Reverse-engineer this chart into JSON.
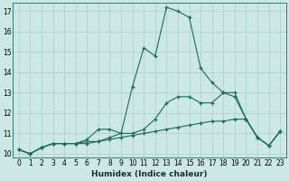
{
  "xlabel": "Humidex (Indice chaleur)",
  "background_color": "#cce8e5",
  "grid_color": "#aacfcc",
  "line_color": "#1a6b5a",
  "xlim_min": -0.5,
  "xlim_max": 23.5,
  "ylim_min": 9.8,
  "ylim_max": 17.4,
  "yticks": [
    10,
    11,
    12,
    13,
    14,
    15,
    16,
    17
  ],
  "xticks": [
    0,
    1,
    2,
    3,
    4,
    5,
    6,
    7,
    8,
    9,
    10,
    11,
    12,
    13,
    14,
    15,
    16,
    17,
    18,
    19,
    20,
    21,
    22,
    23
  ],
  "series": [
    {
      "x": [
        0,
        1,
        2,
        3,
        4,
        5,
        6,
        7,
        8,
        9,
        10,
        11,
        12,
        13,
        14,
        15,
        16,
        17,
        18,
        19,
        20,
        21,
        22,
        23
      ],
      "y": [
        10.2,
        10.0,
        10.3,
        10.5,
        10.5,
        10.5,
        10.6,
        10.6,
        10.8,
        11.0,
        13.3,
        15.2,
        14.8,
        17.2,
        17.0,
        16.7,
        14.2,
        13.5,
        13.0,
        12.8,
        11.7,
        10.8,
        10.4,
        11.1
      ]
    },
    {
      "x": [
        0,
        1,
        2,
        3,
        4,
        5,
        6,
        7,
        8,
        9,
        10,
        11,
        12,
        13,
        14,
        15,
        16,
        17,
        18,
        19,
        20,
        21,
        22,
        23
      ],
      "y": [
        10.2,
        10.0,
        10.3,
        10.5,
        10.5,
        10.5,
        10.7,
        11.2,
        11.2,
        11.0,
        11.0,
        11.2,
        11.7,
        12.5,
        12.8,
        12.8,
        12.5,
        12.5,
        13.0,
        13.0,
        11.7,
        10.8,
        10.4,
        11.1
      ]
    },
    {
      "x": [
        0,
        1,
        2,
        3,
        4,
        5,
        6,
        7,
        8,
        9,
        10,
        11,
        12,
        13,
        14,
        15,
        16,
        17,
        18,
        19,
        20,
        21,
        22,
        23
      ],
      "y": [
        10.2,
        10.0,
        10.3,
        10.5,
        10.5,
        10.5,
        10.5,
        10.6,
        10.7,
        10.8,
        10.9,
        11.0,
        11.1,
        11.2,
        11.3,
        11.4,
        11.5,
        11.6,
        11.6,
        11.7,
        11.7,
        10.8,
        10.4,
        11.1
      ]
    }
  ]
}
